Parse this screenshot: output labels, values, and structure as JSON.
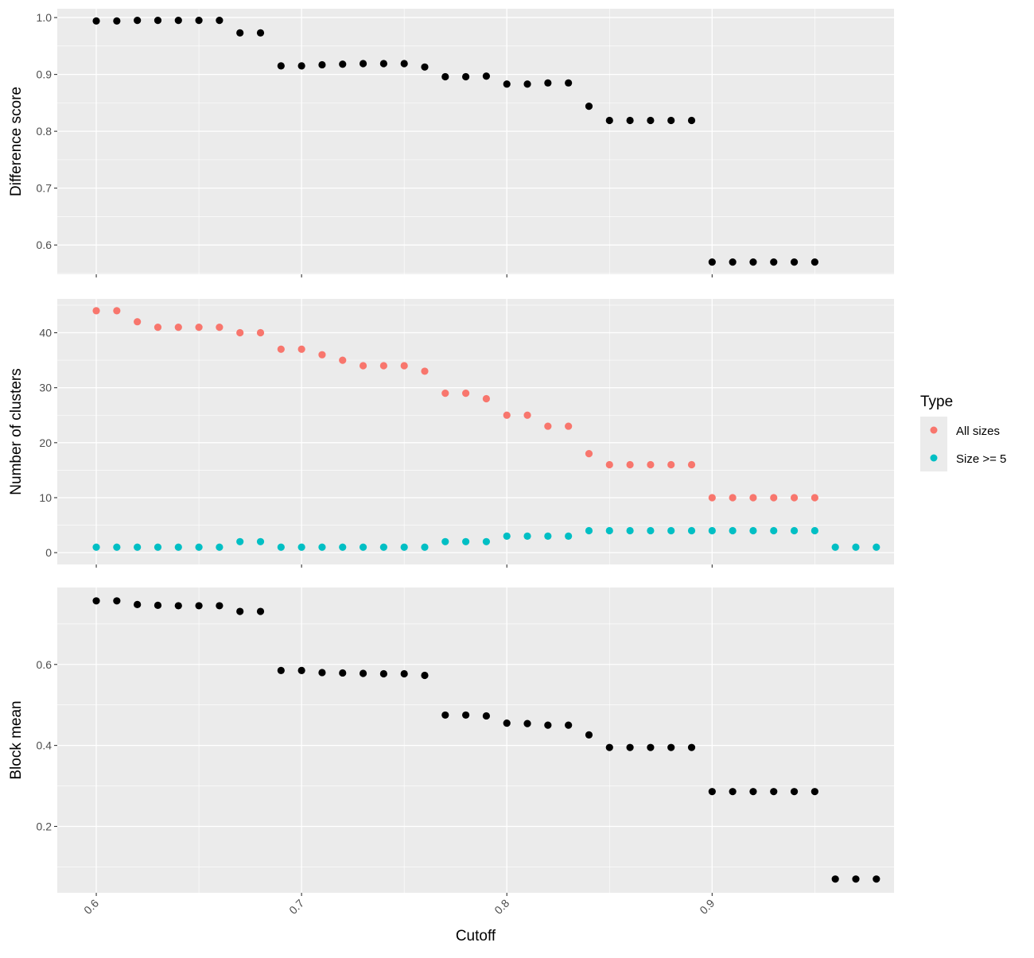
{
  "chart_data": {
    "type": "scatter",
    "xlabel": "Cutoff",
    "xlim": [
      0.581,
      0.9886
    ],
    "x_ticks": [
      "0.6",
      "0.7",
      "0.8",
      "0.9"
    ],
    "x_tick_values": [
      0.6,
      0.7,
      0.8,
      0.9
    ],
    "grid": true,
    "legend": {
      "title": "Type",
      "placement": "right",
      "entries": [
        {
          "name": "All sizes",
          "color": "#F8766D"
        },
        {
          "name": "Size >= 5",
          "color": "#00BFC4"
        }
      ]
    },
    "panels": [
      {
        "ylabel": "Difference score",
        "ylim": [
          0.5485,
          1.0155
        ],
        "y_ticks": [
          "0.6",
          "0.7",
          "0.8",
          "0.9",
          "1.0"
        ],
        "y_tick_values": [
          0.6,
          0.7,
          0.8,
          0.9,
          1.0
        ],
        "series": [
          {
            "color": "#000000",
            "points": [
              [
                0.6,
                0.994
              ],
              [
                0.61,
                0.994
              ],
              [
                0.62,
                0.995
              ],
              [
                0.63,
                0.995
              ],
              [
                0.64,
                0.995
              ],
              [
                0.65,
                0.995
              ],
              [
                0.66,
                0.995
              ],
              [
                0.67,
                0.973
              ],
              [
                0.68,
                0.973
              ],
              [
                0.69,
                0.915
              ],
              [
                0.7,
                0.915
              ],
              [
                0.71,
                0.917
              ],
              [
                0.72,
                0.918
              ],
              [
                0.73,
                0.919
              ],
              [
                0.74,
                0.919
              ],
              [
                0.75,
                0.919
              ],
              [
                0.76,
                0.913
              ],
              [
                0.77,
                0.896
              ],
              [
                0.78,
                0.896
              ],
              [
                0.79,
                0.897
              ],
              [
                0.8,
                0.883
              ],
              [
                0.81,
                0.883
              ],
              [
                0.82,
                0.885
              ],
              [
                0.83,
                0.885
              ],
              [
                0.84,
                0.844
              ],
              [
                0.85,
                0.819
              ],
              [
                0.86,
                0.819
              ],
              [
                0.87,
                0.819
              ],
              [
                0.88,
                0.819
              ],
              [
                0.89,
                0.819
              ],
              [
                0.9,
                0.57
              ],
              [
                0.91,
                0.57
              ],
              [
                0.92,
                0.57
              ],
              [
                0.93,
                0.57
              ],
              [
                0.94,
                0.57
              ],
              [
                0.95,
                0.57
              ]
            ]
          }
        ]
      },
      {
        "ylabel": "Number of clusters",
        "ylim": [
          -2.15,
          46.15
        ],
        "y_ticks": [
          "0",
          "10",
          "20",
          "30",
          "40"
        ],
        "y_tick_values": [
          0,
          10,
          20,
          30,
          40
        ],
        "series": [
          {
            "name": "All sizes",
            "color": "#F8766D",
            "points": [
              [
                0.6,
                44
              ],
              [
                0.61,
                44
              ],
              [
                0.62,
                42
              ],
              [
                0.63,
                41
              ],
              [
                0.64,
                41
              ],
              [
                0.65,
                41
              ],
              [
                0.66,
                41
              ],
              [
                0.67,
                40
              ],
              [
                0.68,
                40
              ],
              [
                0.69,
                37
              ],
              [
                0.7,
                37
              ],
              [
                0.71,
                36
              ],
              [
                0.72,
                35
              ],
              [
                0.73,
                34
              ],
              [
                0.74,
                34
              ],
              [
                0.75,
                34
              ],
              [
                0.76,
                33
              ],
              [
                0.77,
                29
              ],
              [
                0.78,
                29
              ],
              [
                0.79,
                28
              ],
              [
                0.8,
                25
              ],
              [
                0.81,
                25
              ],
              [
                0.82,
                23
              ],
              [
                0.83,
                23
              ],
              [
                0.84,
                18
              ],
              [
                0.85,
                16
              ],
              [
                0.86,
                16
              ],
              [
                0.87,
                16
              ],
              [
                0.88,
                16
              ],
              [
                0.89,
                16
              ],
              [
                0.9,
                10
              ],
              [
                0.91,
                10
              ],
              [
                0.92,
                10
              ],
              [
                0.93,
                10
              ],
              [
                0.94,
                10
              ],
              [
                0.95,
                10
              ]
            ]
          },
          {
            "name": "Size >= 5",
            "color": "#00BFC4",
            "points": [
              [
                0.6,
                1
              ],
              [
                0.61,
                1
              ],
              [
                0.62,
                1
              ],
              [
                0.63,
                1
              ],
              [
                0.64,
                1
              ],
              [
                0.65,
                1
              ],
              [
                0.66,
                1
              ],
              [
                0.67,
                2
              ],
              [
                0.68,
                2
              ],
              [
                0.69,
                1
              ],
              [
                0.7,
                1
              ],
              [
                0.71,
                1
              ],
              [
                0.72,
                1
              ],
              [
                0.73,
                1
              ],
              [
                0.74,
                1
              ],
              [
                0.75,
                1
              ],
              [
                0.76,
                1
              ],
              [
                0.77,
                2
              ],
              [
                0.78,
                2
              ],
              [
                0.79,
                2
              ],
              [
                0.8,
                3
              ],
              [
                0.81,
                3
              ],
              [
                0.82,
                3
              ],
              [
                0.83,
                3
              ],
              [
                0.84,
                4
              ],
              [
                0.85,
                4
              ],
              [
                0.86,
                4
              ],
              [
                0.87,
                4
              ],
              [
                0.88,
                4
              ],
              [
                0.89,
                4
              ],
              [
                0.9,
                4
              ],
              [
                0.91,
                4
              ],
              [
                0.92,
                4
              ],
              [
                0.93,
                4
              ],
              [
                0.94,
                4
              ],
              [
                0.95,
                4
              ],
              [
                0.96,
                1
              ],
              [
                0.97,
                1
              ],
              [
                0.98,
                1
              ]
            ]
          }
        ]
      },
      {
        "ylabel": "Block mean",
        "ylim": [
          0.036,
          0.79
        ],
        "y_ticks": [
          "0.2",
          "0.4",
          "0.6"
        ],
        "y_tick_values": [
          0.2,
          0.4,
          0.6
        ],
        "series": [
          {
            "color": "#000000",
            "points": [
              [
                0.6,
                0.757
              ],
              [
                0.61,
                0.757
              ],
              [
                0.62,
                0.748
              ],
              [
                0.63,
                0.746
              ],
              [
                0.64,
                0.745
              ],
              [
                0.65,
                0.745
              ],
              [
                0.66,
                0.745
              ],
              [
                0.67,
                0.731
              ],
              [
                0.68,
                0.731
              ],
              [
                0.69,
                0.585
              ],
              [
                0.7,
                0.585
              ],
              [
                0.71,
                0.58
              ],
              [
                0.72,
                0.579
              ],
              [
                0.73,
                0.578
              ],
              [
                0.74,
                0.577
              ],
              [
                0.75,
                0.577
              ],
              [
                0.76,
                0.573
              ],
              [
                0.77,
                0.475
              ],
              [
                0.78,
                0.475
              ],
              [
                0.79,
                0.473
              ],
              [
                0.8,
                0.455
              ],
              [
                0.81,
                0.454
              ],
              [
                0.82,
                0.45
              ],
              [
                0.83,
                0.45
              ],
              [
                0.84,
                0.426
              ],
              [
                0.85,
                0.395
              ],
              [
                0.86,
                0.395
              ],
              [
                0.87,
                0.395
              ],
              [
                0.88,
                0.395
              ],
              [
                0.89,
                0.395
              ],
              [
                0.9,
                0.286
              ],
              [
                0.91,
                0.286
              ],
              [
                0.92,
                0.286
              ],
              [
                0.93,
                0.286
              ],
              [
                0.94,
                0.286
              ],
              [
                0.95,
                0.286
              ],
              [
                0.96,
                0.07
              ],
              [
                0.97,
                0.07
              ],
              [
                0.98,
                0.07
              ]
            ]
          }
        ]
      }
    ]
  }
}
